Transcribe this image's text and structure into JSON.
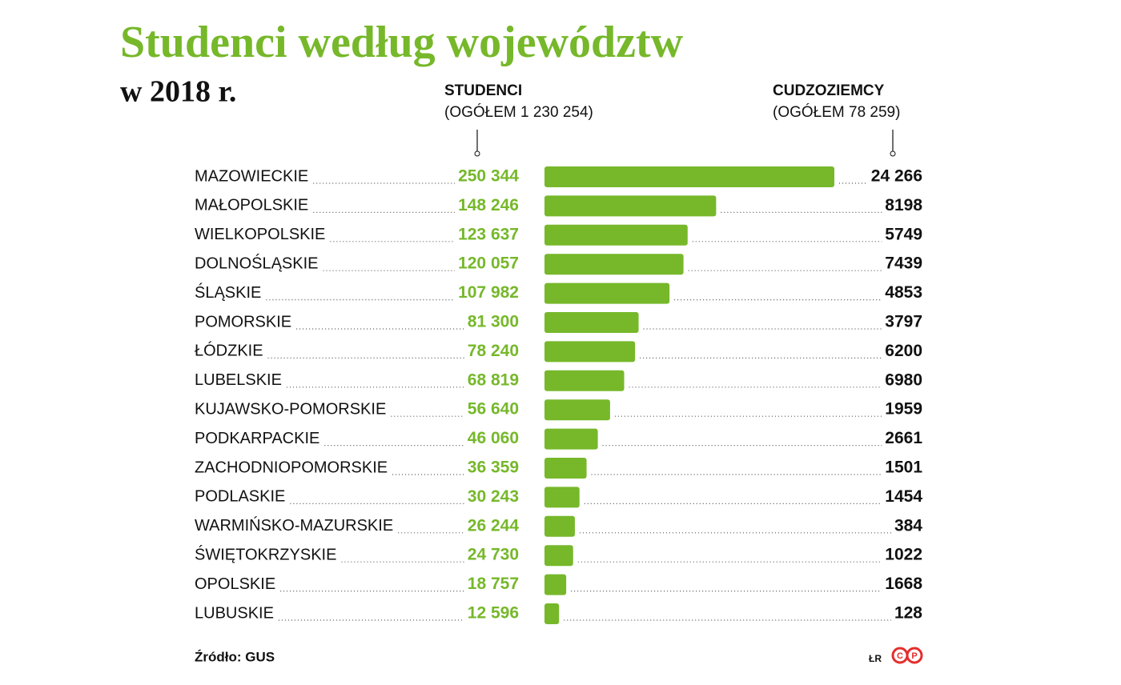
{
  "chart_data": {
    "type": "bar",
    "orientation": "horizontal",
    "title": "Studenci według województw",
    "subtitle": "w 2018 r.",
    "categories": [
      "MAZOWIECKIE",
      "MAŁOPOLSKIE",
      "WIELKOPOLSKIE",
      "DOLNOŚLĄSKIE",
      "ŚLĄSKIE",
      "POMORSKIE",
      "ŁÓDZKIE",
      "LUBELSKIE",
      "KUJAWSKO-POMORSKIE",
      "PODKARPACKIE",
      "ZACHODNIOPOMORSKIE",
      "PODLASKIE",
      "WARMIŃSKO-MAZURSKIE",
      "ŚWIĘTOKRZYSKIE",
      "OPOLSKIE",
      "LUBUSKIE"
    ],
    "series": [
      {
        "name": "STUDENCI",
        "total": "(OGÓŁEM 1 230 254)",
        "color": "#76b82a",
        "values": [
          250344,
          148246,
          123637,
          120057,
          107982,
          81300,
          78240,
          68819,
          56640,
          46060,
          36359,
          30243,
          26244,
          24730,
          18757,
          12596
        ],
        "value_labels": [
          "250 344",
          "148 246",
          "123 637",
          "120 057",
          "107 982",
          "81 300",
          "78 240",
          "68 819",
          "56 640",
          "46 060",
          "36 359",
          "30 243",
          "26 244",
          "24 730",
          "18 757",
          "12 596"
        ]
      },
      {
        "name": "CUDZOZIEMCY",
        "total": "(OGÓŁEM 78 259)",
        "color": "#111111",
        "values": [
          24266,
          8198,
          5749,
          7439,
          4853,
          3797,
          6200,
          6980,
          1959,
          2661,
          1501,
          1454,
          384,
          1022,
          1668,
          128
        ],
        "value_labels": [
          "24 266",
          "8198",
          "5749",
          "7439",
          "4853",
          "3797",
          "6200",
          "6980",
          "1959",
          "2661",
          "1501",
          "1454",
          "384",
          "1022",
          "1668",
          "128"
        ]
      }
    ],
    "source": "Źródło: GUS",
    "credit": "ŁR",
    "logo": [
      "C",
      "P"
    ]
  }
}
